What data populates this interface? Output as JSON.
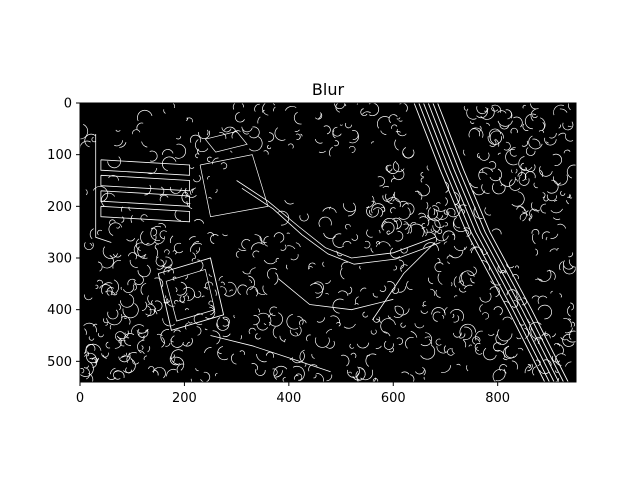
{
  "figure": {
    "title": "Blur",
    "background": "#ffffff"
  },
  "chart_data": {
    "type": "image",
    "title": "Blur",
    "image_width": 950,
    "image_height": 540,
    "image_content": "binary edge map (white edges on black)",
    "xlim": [
      0,
      950
    ],
    "ylim": [
      540,
      0
    ],
    "x_ticks": [
      0,
      200,
      400,
      600,
      800
    ],
    "y_ticks": [
      0,
      100,
      200,
      300,
      400,
      500
    ],
    "colors": {
      "background": "#000000",
      "edges": "#ffffff",
      "axes": "#000000"
    }
  }
}
